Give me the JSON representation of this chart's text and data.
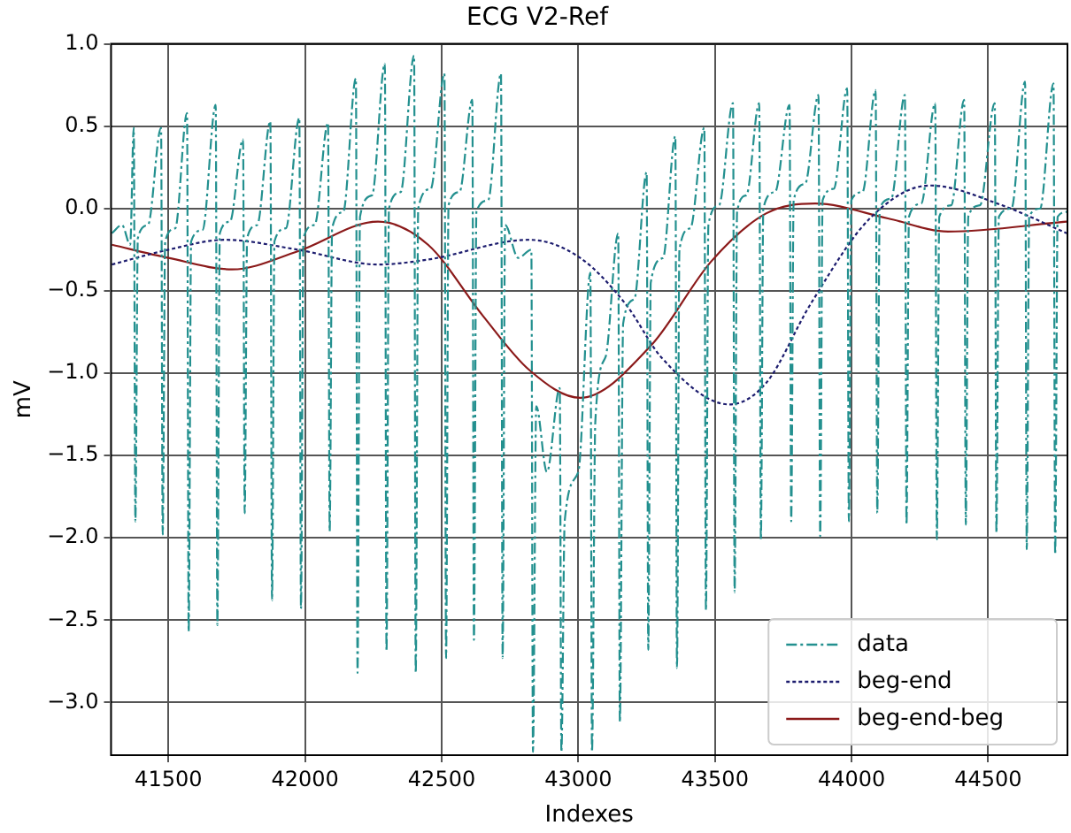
{
  "chart_data": {
    "type": "line",
    "title": "ECG V2-Ref",
    "xlabel": "Indexes",
    "ylabel": "mV",
    "xlim": [
      41290,
      44790
    ],
    "ylim": [
      -3.32,
      1.0
    ],
    "xticks": [
      41500,
      42000,
      42500,
      43000,
      43500,
      44000,
      44500
    ],
    "yticks": [
      {
        "value": 1,
        "label": "1.0"
      },
      {
        "value": 0.5,
        "label": "0.5"
      },
      {
        "value": 0,
        "label": "0.0"
      },
      {
        "value": -0.5,
        "label": "−0.5"
      },
      {
        "value": -1,
        "label": "−1.0"
      },
      {
        "value": -1.5,
        "label": "−1.5"
      },
      {
        "value": -2,
        "label": "−2.0"
      },
      {
        "value": -2.5,
        "label": "−2.5"
      },
      {
        "value": -3,
        "label": "−3.0"
      }
    ],
    "grid": true,
    "legend": "bottom right",
    "marker": "none",
    "series": [
      {
        "name": "data",
        "color": "#23908f",
        "line_style": "dashed",
        "x": [
          41293,
          41330,
          41360,
          41373,
          41379,
          41388,
          41425,
          41473,
          41479,
          41488,
          41525,
          41568,
          41574,
          41583,
          41625,
          41673,
          41679,
          41688,
          41725,
          41773,
          41779,
          41788,
          41825,
          41873,
          41879,
          41888,
          41930,
          41979,
          41985,
          41994,
          42035,
          42084,
          42090,
          42099,
          42140,
          42186,
          42192,
          42201,
          42245,
          42292,
          42298,
          42307,
          42350,
          42399,
          42405,
          42414,
          42460,
          42510,
          42516,
          42525,
          42565,
          42612,
          42618,
          42627,
          42670,
          42717,
          42723,
          42732,
          42780,
          42828,
          42834,
          42846,
          42885,
          42932,
          42938,
          42950,
          43000,
          43044,
          43050,
          43062,
          43100,
          43146,
          43152,
          43164,
          43205,
          43250,
          43256,
          43265,
          43310,
          43355,
          43361,
          43370,
          43410,
          43461,
          43467,
          43476,
          43515,
          43566,
          43572,
          43581,
          43615,
          43662,
          43668,
          43677,
          43720,
          43773,
          43779,
          43788,
          43830,
          43879,
          43885,
          43894,
          43935,
          43984,
          43990,
          43999,
          44040,
          44088,
          44094,
          44103,
          44145,
          44195,
          44201,
          44210,
          44255,
          44306,
          44312,
          44321,
          44365,
          44412,
          44418,
          44427,
          44470,
          44524,
          44530,
          44539,
          44585,
          44635,
          44641,
          44650,
          44690,
          44739,
          44745,
          44754,
          44790
        ],
        "values": [
          -0.15,
          -0.1,
          -0.22,
          0.49,
          -1.9,
          -0.18,
          -0.1,
          0.49,
          -1.98,
          -0.2,
          -0.12,
          0.58,
          -2.57,
          -0.2,
          -0.13,
          0.63,
          -2.53,
          -0.15,
          -0.08,
          0.42,
          -1.85,
          -0.18,
          -0.1,
          0.53,
          -2.38,
          -0.2,
          -0.12,
          0.55,
          -2.43,
          -0.18,
          -0.1,
          0.52,
          -1.96,
          -0.12,
          -0.02,
          0.79,
          -2.82,
          -0.05,
          0.08,
          0.88,
          -2.69,
          0,
          0.1,
          0.93,
          -2.82,
          0,
          0.12,
          0.82,
          -2.73,
          0.02,
          0.1,
          0.66,
          -2.62,
          -0.02,
          0.05,
          0.82,
          -2.73,
          -0.1,
          -0.3,
          -0.25,
          -3.3,
          -1.2,
          -1.6,
          -1.09,
          -3.3,
          -1.9,
          -1.6,
          -0.39,
          -3.3,
          -1.3,
          -0.9,
          -0.15,
          -3.12,
          -0.7,
          -0.55,
          0.22,
          -2.68,
          -0.45,
          -0.3,
          0.44,
          -2.79,
          -0.25,
          -0.12,
          0.49,
          -2.44,
          -0.1,
          0.02,
          0.64,
          -2.33,
          -0.02,
          0.08,
          0.64,
          -2.01,
          0,
          0.1,
          0.63,
          -1.9,
          0.05,
          0.15,
          0.69,
          -1.99,
          0.05,
          0.12,
          0.73,
          -1.9,
          0.05,
          0.1,
          0.72,
          -1.85,
          0,
          0.06,
          0.69,
          -1.92,
          -0.05,
          0.03,
          0.64,
          -2.01,
          -0.05,
          0.02,
          0.66,
          -1.92,
          -0.05,
          0.02,
          0.64,
          -1.97,
          -0.05,
          0,
          0.77,
          -2.07,
          -0.05,
          0,
          0.76,
          -2.1,
          -0.05,
          -0.02
        ]
      },
      {
        "name": "beg-end",
        "color": "#1c1c6e",
        "line_style": "dotted",
        "x": [
          41293,
          41500,
          41707,
          41973,
          42267,
          42450,
          42820,
          43007,
          43173,
          43307,
          43553,
          43687,
          43850,
          44067,
          44287,
          44550,
          44787
        ],
        "values": [
          -0.34,
          -0.25,
          -0.19,
          -0.25,
          -0.34,
          -0.31,
          -0.19,
          -0.3,
          -0.58,
          -0.91,
          -1.19,
          -1.06,
          -0.58,
          -0.06,
          0.14,
          0.02,
          -0.15
        ]
      },
      {
        "name": "beg-end-beg",
        "color": "#8b1a1a",
        "line_style": "solid",
        "x": [
          41293,
          41500,
          41733,
          41973,
          42267,
          42450,
          42650,
          42820,
          43007,
          43267,
          43487,
          43687,
          43867,
          44133,
          44353,
          44787
        ],
        "values": [
          -0.22,
          -0.3,
          -0.37,
          -0.26,
          -0.08,
          -0.22,
          -0.65,
          -0.98,
          -1.15,
          -0.83,
          -0.32,
          -0.03,
          0.03,
          -0.06,
          -0.14,
          -0.08
        ]
      }
    ]
  }
}
